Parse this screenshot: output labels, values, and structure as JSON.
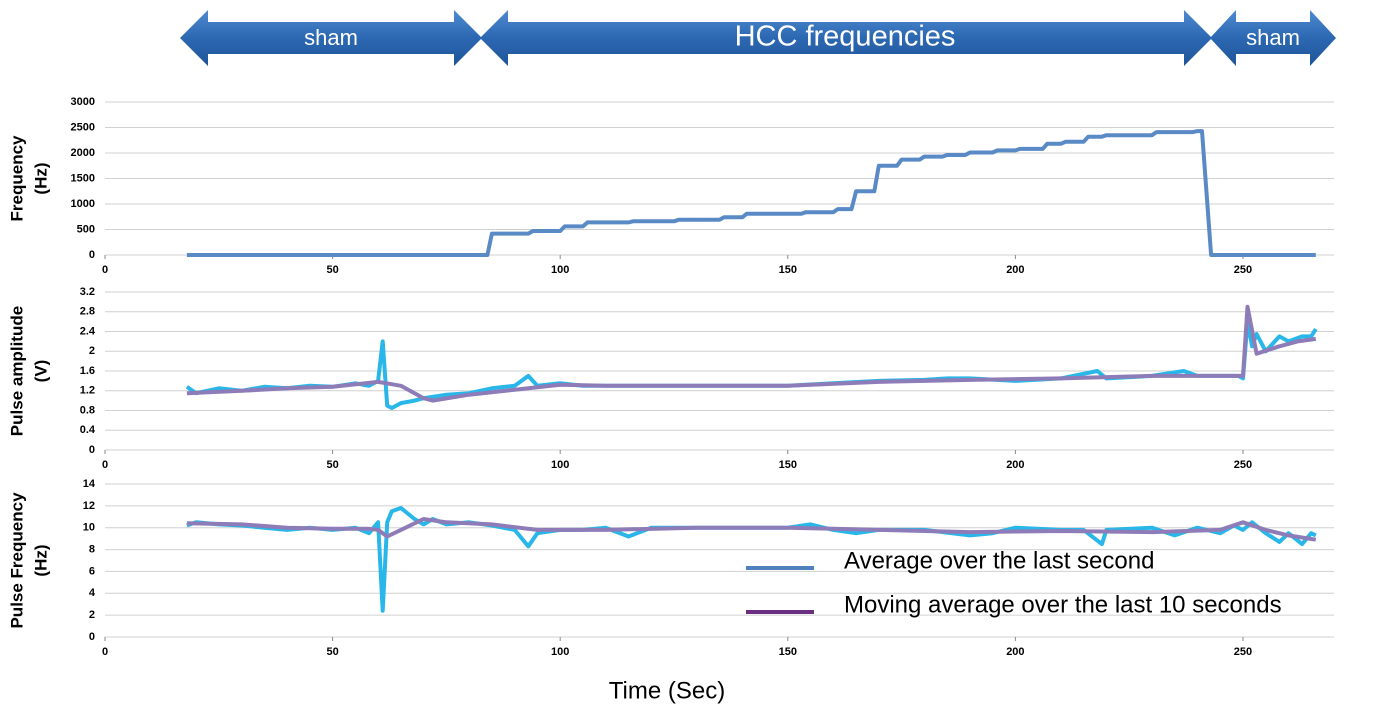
{
  "phases": [
    {
      "label": "sham"
    },
    {
      "label": "HCC frequencies"
    },
    {
      "label": "sham"
    }
  ],
  "x_label": "Time (Sec)",
  "legend": [
    {
      "label": "Average over the last second",
      "color": "#4f81bd"
    },
    {
      "label": "Moving average over the last 10 seconds",
      "color": "#6a2f80"
    }
  ],
  "chart_data": [
    {
      "type": "line",
      "y_label": [
        "Frequency",
        "(Hz)"
      ],
      "xlim": [
        0,
        270
      ],
      "xticks": [
        0,
        50,
        100,
        150,
        200,
        250
      ],
      "ylim": [
        0,
        3000
      ],
      "yticks": [
        0,
        500,
        1000,
        1500,
        2000,
        2500,
        3000
      ],
      "grid": true,
      "series": [
        {
          "color": "#5a8ac6",
          "x": [
            18,
            84,
            85,
            93,
            94,
            100,
            101,
            105,
            106,
            115,
            116,
            125,
            126,
            135,
            136,
            140,
            141,
            153,
            154,
            160,
            161,
            164,
            165,
            169,
            170,
            174,
            175,
            179,
            180,
            184,
            185,
            189,
            190,
            195,
            196,
            200,
            201,
            206,
            207,
            210,
            211,
            215,
            216,
            219,
            220,
            230,
            231,
            239,
            240,
            241,
            243,
            266
          ],
          "values": [
            0,
            0,
            420,
            420,
            470,
            470,
            560,
            560,
            640,
            640,
            660,
            660,
            690,
            690,
            740,
            740,
            810,
            810,
            840,
            840,
            900,
            900,
            1250,
            1250,
            1750,
            1750,
            1870,
            1870,
            1930,
            1930,
            1960,
            1960,
            2010,
            2010,
            2050,
            2050,
            2080,
            2080,
            2180,
            2180,
            2220,
            2220,
            2320,
            2320,
            2350,
            2350,
            2410,
            2410,
            2430,
            2430,
            0,
            0
          ]
        }
      ]
    },
    {
      "type": "line",
      "y_label": [
        "Pulse amplitude",
        "(V)"
      ],
      "xlim": [
        0,
        270
      ],
      "xticks": [
        0,
        50,
        100,
        150,
        200,
        250
      ],
      "ylim": [
        0,
        3.2
      ],
      "yticks": [
        0,
        0.4,
        0.8,
        1.2,
        1.6,
        2,
        2.4,
        2.8,
        3.2
      ],
      "grid": true,
      "series": [
        {
          "color": "#29b6e8",
          "x": [
            18,
            20,
            25,
            30,
            35,
            40,
            45,
            50,
            55,
            58,
            60,
            61,
            62,
            63,
            65,
            68,
            70,
            75,
            80,
            85,
            90,
            93,
            95,
            100,
            105,
            110,
            120,
            130,
            140,
            150,
            160,
            170,
            180,
            185,
            190,
            200,
            210,
            218,
            220,
            230,
            237,
            240,
            245,
            249,
            250,
            251,
            252,
            253,
            255,
            258,
            260,
            263,
            265,
            266
          ],
          "values": [
            1.28,
            1.15,
            1.25,
            1.2,
            1.28,
            1.25,
            1.3,
            1.28,
            1.35,
            1.3,
            1.4,
            2.2,
            0.9,
            0.85,
            0.95,
            1.0,
            1.05,
            1.12,
            1.15,
            1.25,
            1.3,
            1.5,
            1.3,
            1.35,
            1.3,
            1.3,
            1.3,
            1.3,
            1.3,
            1.3,
            1.35,
            1.4,
            1.42,
            1.45,
            1.45,
            1.4,
            1.45,
            1.6,
            1.45,
            1.5,
            1.6,
            1.5,
            1.5,
            1.5,
            1.45,
            2.6,
            2.1,
            2.35,
            2.0,
            2.3,
            2.2,
            2.3,
            2.3,
            2.45
          ]
        },
        {
          "color": "#8e7cb9",
          "x": [
            18,
            30,
            40,
            50,
            60,
            65,
            70,
            72,
            80,
            90,
            100,
            110,
            130,
            150,
            170,
            190,
            210,
            230,
            250,
            251,
            253,
            258,
            262,
            266
          ],
          "values": [
            1.15,
            1.2,
            1.25,
            1.28,
            1.38,
            1.3,
            1.05,
            1.0,
            1.12,
            1.22,
            1.32,
            1.3,
            1.3,
            1.3,
            1.38,
            1.42,
            1.45,
            1.5,
            1.5,
            2.9,
            1.95,
            2.1,
            2.2,
            2.25
          ]
        }
      ]
    },
    {
      "type": "line",
      "y_label": [
        "Pulse Frequency",
        "(Hz)"
      ],
      "xlim": [
        0,
        270
      ],
      "xticks": [
        0,
        50,
        100,
        150,
        200,
        250
      ],
      "ylim": [
        0,
        14
      ],
      "yticks": [
        0,
        2,
        4,
        6,
        8,
        10,
        12,
        14
      ],
      "grid": true,
      "series": [
        {
          "color": "#29b6e8",
          "x": [
            18,
            20,
            25,
            30,
            35,
            40,
            45,
            50,
            55,
            58,
            60,
            61,
            62,
            63,
            65,
            68,
            70,
            72,
            75,
            80,
            85,
            90,
            93,
            95,
            100,
            105,
            110,
            115,
            120,
            130,
            140,
            150,
            155,
            160,
            165,
            170,
            180,
            190,
            195,
            200,
            210,
            215,
            219,
            220,
            230,
            235,
            240,
            245,
            248,
            250,
            252,
            255,
            258,
            260,
            263,
            265,
            266
          ],
          "values": [
            10.2,
            10.5,
            10.3,
            10.2,
            10,
            9.8,
            10,
            9.8,
            10,
            9.5,
            10.5,
            2.4,
            10.5,
            11.5,
            11.8,
            10.8,
            10.3,
            10.8,
            10.3,
            10.5,
            10.2,
            9.8,
            8.3,
            9.5,
            9.8,
            9.8,
            10,
            9.2,
            10,
            10,
            10,
            10,
            10.3,
            9.8,
            9.5,
            9.8,
            9.8,
            9.3,
            9.5,
            10,
            9.8,
            9.8,
            8.5,
            9.8,
            10,
            9.3,
            10,
            9.5,
            10.2,
            9.8,
            10.5,
            9.5,
            8.7,
            9.5,
            8.5,
            9.5,
            9.3
          ]
        },
        {
          "color": "#8e7cb9",
          "x": [
            18,
            30,
            40,
            50,
            58,
            60,
            62,
            65,
            70,
            75,
            85,
            95,
            110,
            130,
            150,
            160,
            170,
            190,
            210,
            230,
            245,
            250,
            255,
            260,
            266
          ],
          "values": [
            10.4,
            10.3,
            10,
            9.9,
            9.9,
            9.8,
            9.2,
            9.8,
            10.8,
            10.5,
            10.3,
            9.8,
            9.8,
            10,
            10,
            9.9,
            9.8,
            9.6,
            9.7,
            9.6,
            9.8,
            10.5,
            9.8,
            9.3,
            8.9
          ]
        }
      ]
    }
  ]
}
